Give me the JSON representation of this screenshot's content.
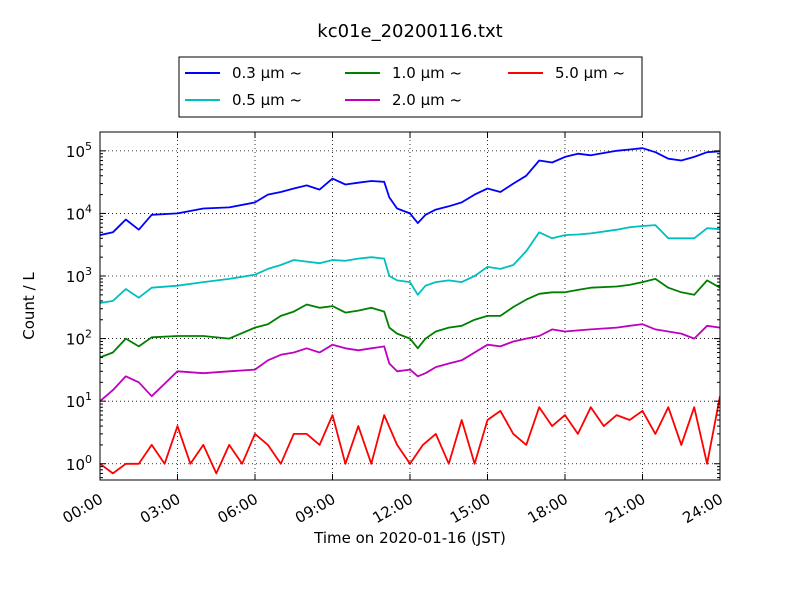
{
  "chart_data": {
    "type": "line",
    "title": "kc01e_20200116.txt",
    "xlabel": "Time on 2020-01-16 (JST)",
    "ylabel": "Count / L",
    "y_scale": "log",
    "ylim": [
      0.55,
      200000
    ],
    "xlim": [
      0,
      24
    ],
    "x_unit": "hours (JST)",
    "x_ticks": [
      {
        "value": 0,
        "label": "00:00"
      },
      {
        "value": 3,
        "label": "03:00"
      },
      {
        "value": 6,
        "label": "06:00"
      },
      {
        "value": 9,
        "label": "09:00"
      },
      {
        "value": 12,
        "label": "12:00"
      },
      {
        "value": 15,
        "label": "15:00"
      },
      {
        "value": 18,
        "label": "18:00"
      },
      {
        "value": 21,
        "label": "21:00"
      },
      {
        "value": 24,
        "label": "24:00"
      }
    ],
    "y_ticks": [
      {
        "value": 1,
        "base": "10",
        "exp": "0"
      },
      {
        "value": 10,
        "base": "10",
        "exp": "1"
      },
      {
        "value": 100,
        "base": "10",
        "exp": "2"
      },
      {
        "value": 1000,
        "base": "10",
        "exp": "3"
      },
      {
        "value": 10000,
        "base": "10",
        "exp": "4"
      },
      {
        "value": 100000,
        "base": "10",
        "exp": "5"
      }
    ],
    "grid": true,
    "legend_position": "top-center",
    "series": [
      {
        "name": "0.3 μm ~",
        "color": "#0000ff",
        "x": [
          0,
          0.5,
          1,
          1.5,
          2,
          3,
          4,
          5,
          6,
          6.5,
          7,
          7.5,
          8,
          8.5,
          9,
          9.5,
          10,
          10.5,
          11,
          11.2,
          11.5,
          12,
          12.3,
          12.6,
          13,
          13.5,
          14,
          14.5,
          15,
          15.5,
          16,
          16.5,
          17,
          17.5,
          18,
          18.5,
          19,
          20,
          20.5,
          21,
          21.5,
          22,
          22.5,
          23,
          23.5,
          24
        ],
        "y": [
          4500,
          5000,
          8000,
          5500,
          9500,
          10000,
          12000,
          12500,
          15000,
          20000,
          22000,
          25000,
          28000,
          24000,
          36000,
          29000,
          31000,
          33000,
          32000,
          18000,
          12000,
          10000,
          7000,
          9500,
          11500,
          13000,
          15000,
          20000,
          25000,
          22000,
          30000,
          40000,
          70000,
          65000,
          80000,
          90000,
          85000,
          100000,
          105000,
          110000,
          95000,
          75000,
          70000,
          80000,
          95000,
          98000
        ]
      },
      {
        "name": "0.5 μm ~",
        "color": "#00bfbf",
        "x": [
          0,
          0.5,
          1,
          1.5,
          2,
          3,
          4,
          5,
          6,
          6.5,
          7,
          7.5,
          8,
          8.5,
          9,
          9.5,
          10,
          10.5,
          11,
          11.2,
          11.5,
          12,
          12.3,
          12.6,
          13,
          13.5,
          14,
          14.5,
          15,
          15.5,
          16,
          16.5,
          17,
          17.5,
          18,
          18.5,
          19,
          20,
          20.5,
          21,
          21.5,
          22,
          22.5,
          23,
          23.5,
          24
        ],
        "y": [
          370,
          400,
          620,
          450,
          650,
          700,
          800,
          900,
          1050,
          1300,
          1500,
          1800,
          1700,
          1600,
          1800,
          1750,
          1900,
          2000,
          1900,
          1000,
          850,
          800,
          500,
          700,
          800,
          850,
          800,
          1000,
          1400,
          1300,
          1500,
          2500,
          5000,
          4000,
          4500,
          4600,
          4800,
          5500,
          6000,
          6300,
          6500,
          4000,
          4000,
          4000,
          5800,
          5600
        ]
      },
      {
        "name": "1.0 μm ~",
        "color": "#008000",
        "x": [
          0,
          0.5,
          1,
          1.5,
          2,
          3,
          4,
          5,
          6,
          6.5,
          7,
          7.5,
          8,
          8.5,
          9,
          9.5,
          10,
          10.5,
          11,
          11.2,
          11.5,
          12,
          12.3,
          12.6,
          13,
          13.5,
          14,
          14.5,
          15,
          15.5,
          16,
          16.5,
          17,
          17.5,
          18,
          18.5,
          19,
          20,
          20.5,
          21,
          21.5,
          22,
          22.5,
          23,
          23.5,
          24
        ],
        "y": [
          50,
          60,
          100,
          75,
          105,
          110,
          110,
          100,
          150,
          170,
          230,
          270,
          350,
          310,
          330,
          260,
          280,
          310,
          270,
          150,
          120,
          100,
          70,
          100,
          130,
          150,
          160,
          200,
          230,
          230,
          320,
          420,
          520,
          550,
          550,
          600,
          650,
          680,
          720,
          800,
          900,
          650,
          550,
          500,
          850,
          650
        ]
      },
      {
        "name": "2.0 μm ~",
        "color": "#bf00bf",
        "x": [
          0,
          0.5,
          1,
          1.5,
          2,
          3,
          4,
          5,
          6,
          6.5,
          7,
          7.5,
          8,
          8.5,
          9,
          9.5,
          10,
          10.5,
          11,
          11.2,
          11.5,
          12,
          12.3,
          12.6,
          13,
          13.5,
          14,
          14.5,
          15,
          15.5,
          16,
          16.5,
          17,
          17.5,
          18,
          18.5,
          19,
          20,
          20.5,
          21,
          21.5,
          22,
          22.5,
          23,
          23.5,
          24
        ],
        "y": [
          10,
          15,
          25,
          20,
          12,
          30,
          28,
          30,
          32,
          45,
          55,
          60,
          70,
          60,
          80,
          70,
          65,
          70,
          75,
          40,
          30,
          32,
          25,
          28,
          35,
          40,
          45,
          60,
          80,
          75,
          90,
          100,
          110,
          140,
          130,
          135,
          140,
          150,
          160,
          170,
          140,
          130,
          120,
          100,
          160,
          150
        ]
      },
      {
        "name": "5.0 μm ~",
        "color": "#ff0000",
        "x": [
          0,
          0.5,
          1,
          1.5,
          2,
          2.5,
          3,
          3.5,
          4,
          4.5,
          5,
          5.5,
          6,
          6.5,
          7,
          7.5,
          8,
          8.5,
          9,
          9.5,
          10,
          10.5,
          11,
          11.5,
          12,
          12.5,
          13,
          13.5,
          14,
          14.5,
          15,
          15.5,
          16,
          16.5,
          17,
          17.5,
          18,
          18.5,
          19,
          19.5,
          20,
          20.5,
          21,
          21.5,
          22,
          22.5,
          23,
          23.5,
          24
        ],
        "y": [
          1,
          0.7,
          1,
          1,
          2,
          1,
          4,
          1,
          2,
          0.7,
          2,
          1,
          3,
          2,
          1,
          3,
          3,
          2,
          6,
          1,
          4,
          1,
          6,
          2,
          1,
          2,
          3,
          1,
          5,
          1,
          5,
          7,
          3,
          2,
          8,
          4,
          6,
          3,
          8,
          4,
          6,
          5,
          7,
          3,
          8,
          2,
          8,
          1,
          12
        ]
      }
    ]
  }
}
